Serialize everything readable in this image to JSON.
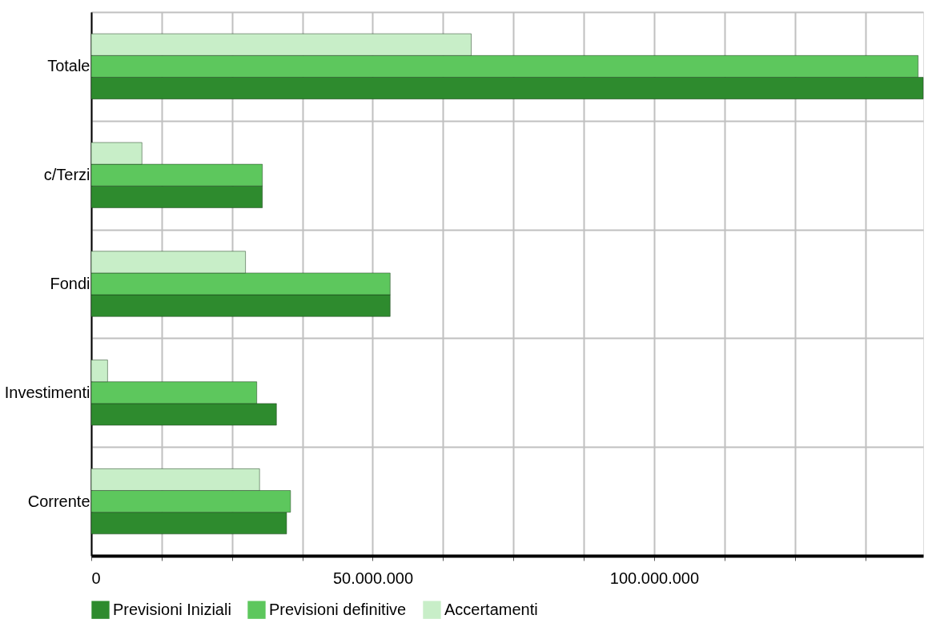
{
  "chart_data": {
    "type": "bar",
    "orientation": "horizontal",
    "categories": [
      "Totale",
      "c/Terzi",
      "Fondi",
      "Investimenti",
      "Corrente"
    ],
    "series": [
      {
        "name": "Previsioni Iniziali",
        "color": "#2e8b2e",
        "values": [
          147800000,
          30400000,
          53100000,
          32900000,
          34700000
        ]
      },
      {
        "name": "Previsioni definitive",
        "color": "#5dc75d",
        "values": [
          146900000,
          30400000,
          53100000,
          29400000,
          35400000
        ]
      },
      {
        "name": "Accertamenti",
        "color": "#c8eec8",
        "values": [
          67500000,
          9000000,
          27400000,
          2900000,
          29900000
        ]
      }
    ],
    "xlim": [
      0,
      147800000
    ],
    "xticks": [
      {
        "value": 0,
        "label": "0"
      },
      {
        "value": 12500000,
        "label": null
      },
      {
        "value": 25000000,
        "label": null
      },
      {
        "value": 37500000,
        "label": null
      },
      {
        "value": 50000000,
        "label": "50.000.000"
      },
      {
        "value": 62500000,
        "label": null
      },
      {
        "value": 75000000,
        "label": null
      },
      {
        "value": 87500000,
        "label": null
      },
      {
        "value": 100000000,
        "label": "100.000.000"
      },
      {
        "value": 112500000,
        "label": null
      },
      {
        "value": 125000000,
        "label": null
      },
      {
        "value": 137500000,
        "label": null
      }
    ],
    "grid": true,
    "legend": "bottom"
  }
}
